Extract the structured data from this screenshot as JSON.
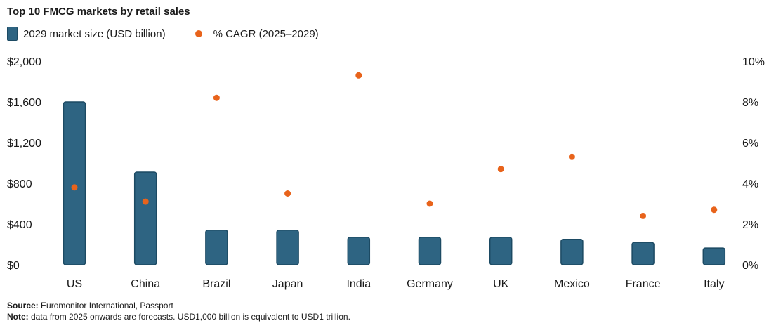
{
  "chart_data": {
    "type": "bar",
    "title": "Top 10 FMCG markets by retail sales",
    "categories": [
      "US",
      "China",
      "Brazil",
      "Japan",
      "India",
      "Germany",
      "UK",
      "Mexico",
      "France",
      "Italy"
    ],
    "series": [
      {
        "name": "2029 market size (USD billion)",
        "kind": "bar",
        "axis": "left",
        "values": [
          1600,
          910,
          340,
          340,
          270,
          270,
          270,
          250,
          220,
          165
        ]
      },
      {
        "name": "% CAGR (2025–2029)",
        "kind": "scatter",
        "axis": "right",
        "values": [
          3.8,
          3.1,
          8.2,
          3.5,
          9.3,
          3.0,
          4.7,
          5.3,
          2.4,
          2.7
        ]
      }
    ],
    "y_left": {
      "ticks": [
        0,
        400,
        800,
        1200,
        1600,
        2000
      ],
      "tick_labels": [
        "$0",
        "$400",
        "$800",
        "$1,200",
        "$1,600",
        "$2,000"
      ],
      "ylim": [
        0,
        2000
      ]
    },
    "y_right": {
      "ticks": [
        0,
        2,
        4,
        6,
        8,
        10
      ],
      "tick_labels": [
        "0%",
        "2%",
        "4%",
        "6%",
        "8%",
        "10%"
      ],
      "ylim": [
        0,
        10
      ]
    },
    "grid": false,
    "legend_position": "top-left",
    "colors": {
      "bar_fill": "#2e6482",
      "bar_stroke": "#1c4a63",
      "dot": "#e8631b"
    }
  },
  "footnotes": {
    "source_label": "Source:",
    "source_text": " Euromonitor International, Passport",
    "note_label": "Note:",
    "note_text": " data from 2025 onwards are forecasts. USD1,000 billion is equivalent to USD1 trillion."
  }
}
